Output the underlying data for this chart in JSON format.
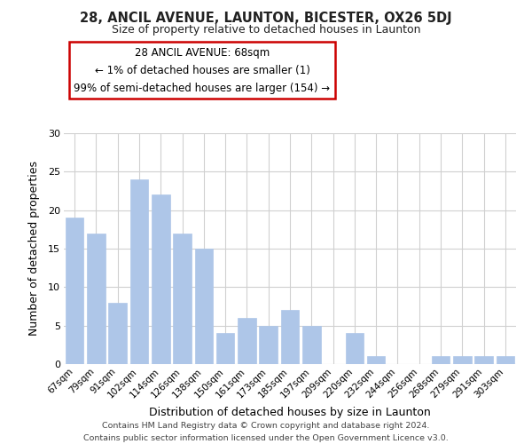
{
  "title1": "28, ANCIL AVENUE, LAUNTON, BICESTER, OX26 5DJ",
  "title2": "Size of property relative to detached houses in Launton",
  "xlabel": "Distribution of detached houses by size in Launton",
  "ylabel": "Number of detached properties",
  "categories": [
    "67sqm",
    "79sqm",
    "91sqm",
    "102sqm",
    "114sqm",
    "126sqm",
    "138sqm",
    "150sqm",
    "161sqm",
    "173sqm",
    "185sqm",
    "197sqm",
    "209sqm",
    "220sqm",
    "232sqm",
    "244sqm",
    "256sqm",
    "268sqm",
    "279sqm",
    "291sqm",
    "303sqm"
  ],
  "values": [
    19,
    17,
    8,
    24,
    22,
    17,
    15,
    4,
    6,
    5,
    7,
    5,
    0,
    4,
    1,
    0,
    0,
    1,
    1,
    1,
    1
  ],
  "bar_color": "#aec6e8",
  "bar_edge_color": "#aec6e8",
  "ylim": [
    0,
    30
  ],
  "yticks": [
    0,
    5,
    10,
    15,
    20,
    25,
    30
  ],
  "annotation_title": "28 ANCIL AVENUE: 68sqm",
  "annotation_line1": "← 1% of detached houses are smaller (1)",
  "annotation_line2": "99% of semi-detached houses are larger (154) →",
  "annotation_box_color": "#ffffff",
  "annotation_box_edge_color": "#cc0000",
  "footer1": "Contains HM Land Registry data © Crown copyright and database right 2024.",
  "footer2": "Contains public sector information licensed under the Open Government Licence v3.0.",
  "bg_color": "#ffffff",
  "grid_color": "#d0d0d0"
}
